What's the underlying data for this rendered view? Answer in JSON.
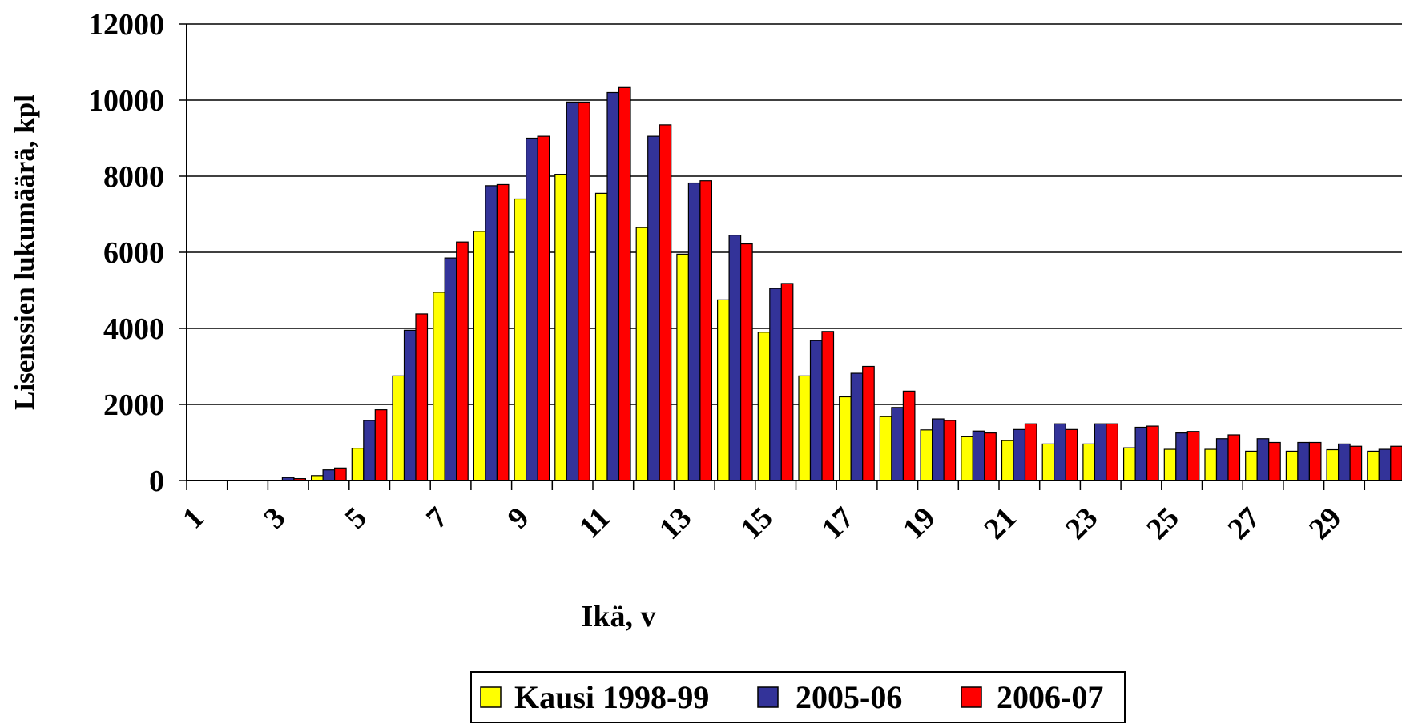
{
  "chart_data": {
    "type": "bar",
    "x_label": "Ikä, v",
    "y_label": "Lisenssien lukumäärä, kpl",
    "categories": [
      "1",
      null,
      "3",
      null,
      "5",
      null,
      "7",
      null,
      "9",
      null,
      "11",
      null,
      "13",
      null,
      "15",
      null,
      "17",
      null,
      "19",
      null,
      "21",
      null,
      "23",
      null,
      "25",
      null,
      "27",
      null,
      "29",
      null
    ],
    "series": [
      {
        "name": "Kausi 1998-99",
        "color": "#ffff00",
        "values": [
          0,
          0,
          0,
          130,
          850,
          2750,
          4950,
          6550,
          7400,
          8050,
          7550,
          6650,
          5950,
          4750,
          3900,
          2750,
          2200,
          1680,
          1330,
          1150,
          1050,
          960,
          960,
          860,
          820,
          820,
          770,
          770,
          810,
          770
        ]
      },
      {
        "name": "2005-06",
        "color": "#333399",
        "values": [
          0,
          0,
          80,
          280,
          1580,
          3950,
          5850,
          7750,
          9000,
          9950,
          10200,
          9050,
          7820,
          6450,
          5050,
          3680,
          2820,
          1920,
          1620,
          1300,
          1340,
          1490,
          1490,
          1400,
          1250,
          1100,
          1100,
          1000,
          960,
          820
        ]
      },
      {
        "name": "2006-07",
        "color": "#ff0000",
        "values": [
          0,
          0,
          50,
          330,
          1860,
          4380,
          6270,
          7780,
          9050,
          9950,
          10330,
          9350,
          7880,
          6220,
          5180,
          3920,
          3000,
          2350,
          1580,
          1250,
          1490,
          1340,
          1490,
          1430,
          1290,
          1200,
          1000,
          1000,
          900,
          900
        ]
      }
    ],
    "ylim": [
      0,
      12000
    ],
    "yticks": [
      0,
      2000,
      4000,
      6000,
      8000,
      10000,
      12000
    ],
    "grid": true,
    "legend": "bottom"
  }
}
